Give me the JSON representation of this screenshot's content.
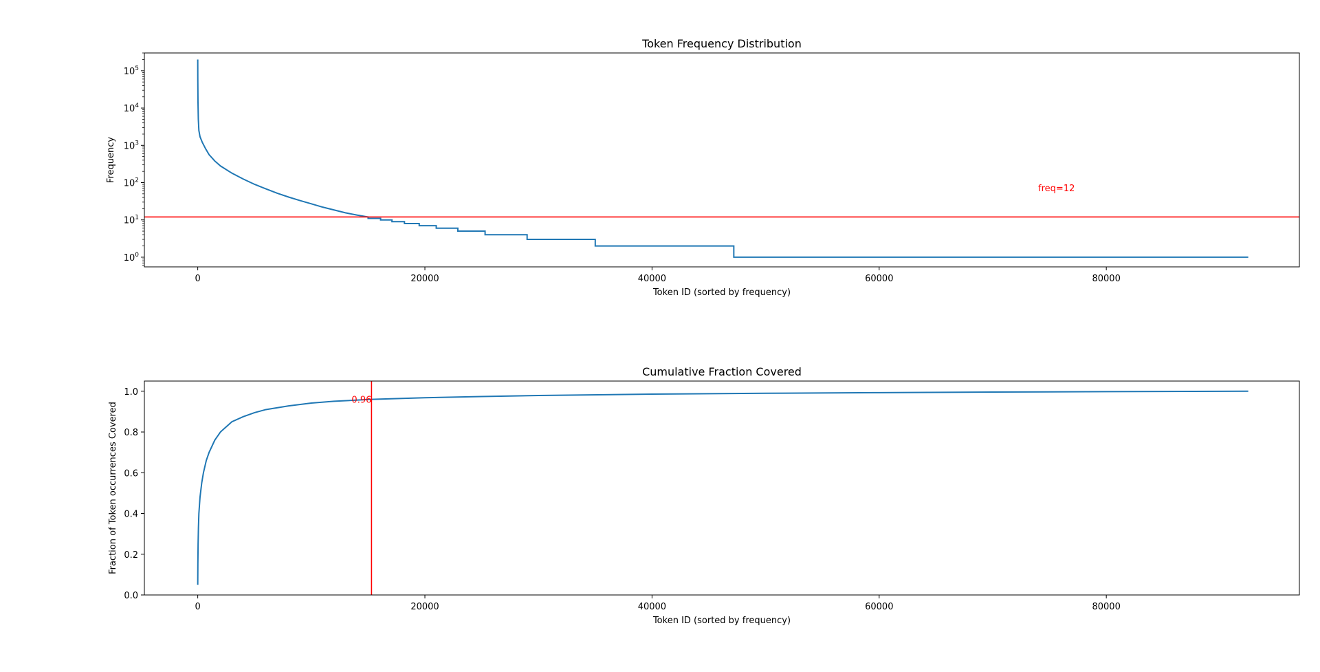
{
  "chart_data": [
    {
      "type": "line",
      "title": "Token Frequency Distribution",
      "xlabel": "Token ID (sorted by frequency)",
      "ylabel": "Frequency",
      "yscale": "log",
      "xlim": [
        -4700,
        97000
      ],
      "ylim": [
        0.55,
        300000
      ],
      "xticks": [
        0,
        20000,
        40000,
        60000,
        80000
      ],
      "xtick_labels": [
        "0",
        "20000",
        "40000",
        "60000",
        "80000"
      ],
      "yticks": [
        1,
        10,
        100,
        1000,
        10000,
        100000
      ],
      "ytick_labels": [
        {
          "base": "10",
          "exp": "0"
        },
        {
          "base": "10",
          "exp": "1"
        },
        {
          "base": "10",
          "exp": "2"
        },
        {
          "base": "10",
          "exp": "3"
        },
        {
          "base": "10",
          "exp": "4"
        },
        {
          "base": "10",
          "exp": "5"
        }
      ],
      "grid": false,
      "series": [
        {
          "color": "#1f77b4",
          "x": [
            0,
            5,
            20,
            50,
            100,
            200,
            400,
            700,
            1000,
            1500,
            2000,
            3000,
            4000,
            5000,
            6000,
            7000,
            8000,
            9000,
            10000,
            11000,
            12000,
            13000,
            14000,
            15000,
            15000,
            16100,
            16100,
            17100,
            17100,
            18200,
            18200,
            19500,
            19500,
            21000,
            21000,
            22900,
            22900,
            25300,
            25300,
            29000,
            29000,
            35000,
            35000,
            47200,
            47200,
            92500
          ],
          "y": [
            200000,
            60000,
            15000,
            5000,
            2500,
            1700,
            1200,
            800,
            560,
            380,
            280,
            180,
            125,
            90,
            68,
            52,
            41,
            33,
            27,
            22,
            18.5,
            15.5,
            13.5,
            12,
            11,
            11,
            10,
            10,
            9,
            9,
            8,
            8,
            7,
            7,
            6,
            6,
            5,
            5,
            4,
            4,
            3,
            3,
            2,
            2,
            1,
            1
          ]
        }
      ],
      "annotations": [
        {
          "type": "hline",
          "y": 12,
          "color": "#ff0000"
        },
        {
          "type": "text",
          "x": 74000,
          "y": 72,
          "text": "freq=12",
          "color": "#ff0000"
        }
      ]
    },
    {
      "type": "line",
      "title": "Cumulative Fraction Covered",
      "xlabel": "Token ID (sorted by frequency)",
      "ylabel": "Fraction of Token occurrences Covered",
      "xlim": [
        -4700,
        97000
      ],
      "ylim": [
        0.0,
        1.05
      ],
      "xticks": [
        0,
        20000,
        40000,
        60000,
        80000
      ],
      "xtick_labels": [
        "0",
        "20000",
        "40000",
        "60000",
        "80000"
      ],
      "yticks": [
        0.0,
        0.2,
        0.4,
        0.6,
        0.8,
        1.0
      ],
      "ytick_labels": [
        "0.0",
        "0.2",
        "0.4",
        "0.6",
        "0.8",
        "1.0"
      ],
      "grid": false,
      "series": [
        {
          "color": "#1f77b4",
          "x": [
            0,
            10,
            30,
            60,
            100,
            200,
            350,
            500,
            750,
            1000,
            1500,
            2000,
            3000,
            4000,
            5000,
            6000,
            8000,
            10000,
            12000,
            15300,
            20000,
            25000,
            30000,
            40000,
            50000,
            60000,
            70000,
            80000,
            92500
          ],
          "y": [
            0.05,
            0.15,
            0.25,
            0.33,
            0.4,
            0.48,
            0.55,
            0.6,
            0.66,
            0.7,
            0.76,
            0.8,
            0.85,
            0.875,
            0.895,
            0.91,
            0.928,
            0.942,
            0.951,
            0.96,
            0.968,
            0.974,
            0.979,
            0.986,
            0.99,
            0.993,
            0.996,
            0.998,
            1.0
          ]
        }
      ],
      "annotations": [
        {
          "type": "vline",
          "x": 15300,
          "color": "#ff0000"
        },
        {
          "type": "text",
          "x": 15300,
          "y": 0.96,
          "text": "0.96",
          "color": "#ff0000"
        }
      ]
    }
  ]
}
